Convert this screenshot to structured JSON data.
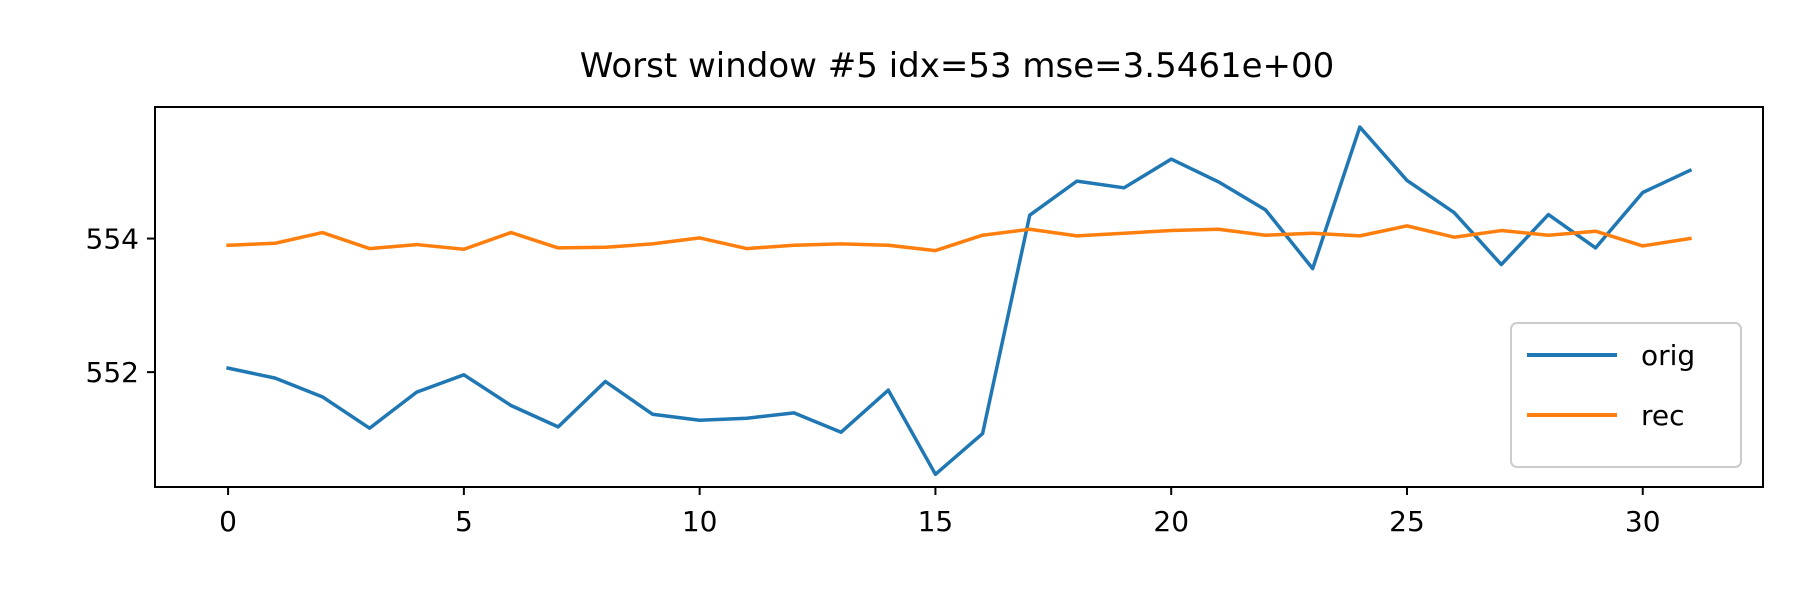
{
  "chart_data": {
    "type": "line",
    "title": "Worst window #5 idx=53 mse=3.5461e+00",
    "xlabel": "",
    "ylabel": "",
    "xlim": [
      -1.55,
      32.55
    ],
    "ylim": [
      550.28,
      555.97
    ],
    "x_ticks": [
      0,
      5,
      10,
      15,
      20,
      25,
      30
    ],
    "y_ticks": [
      552,
      554
    ],
    "grid": false,
    "legend_position": "lower-right",
    "x": [
      0,
      1,
      2,
      3,
      4,
      5,
      6,
      7,
      8,
      9,
      10,
      11,
      12,
      13,
      14,
      15,
      16,
      17,
      18,
      19,
      20,
      21,
      22,
      23,
      24,
      25,
      26,
      27,
      28,
      29,
      30,
      31
    ],
    "series": [
      {
        "name": "orig",
        "color": "#1f77b4",
        "values": [
          552.06,
          551.91,
          551.63,
          551.16,
          551.7,
          551.96,
          551.5,
          551.18,
          551.86,
          551.37,
          551.28,
          551.31,
          551.39,
          551.1,
          551.73,
          550.47,
          551.08,
          554.35,
          554.86,
          554.76,
          555.19,
          554.85,
          554.43,
          553.55,
          555.67,
          554.87,
          554.39,
          553.61,
          554.36,
          553.86,
          554.69,
          555.02
        ]
      },
      {
        "name": "rec",
        "color": "#ff7f0e",
        "values": [
          553.9,
          553.93,
          554.09,
          553.85,
          553.91,
          553.84,
          554.09,
          553.86,
          553.87,
          553.92,
          554.01,
          553.85,
          553.9,
          553.92,
          553.9,
          553.82,
          554.05,
          554.14,
          554.04,
          554.08,
          554.12,
          554.14,
          554.05,
          554.08,
          554.04,
          554.19,
          554.02,
          554.12,
          554.05,
          554.11,
          553.89,
          554.0
        ]
      }
    ]
  }
}
